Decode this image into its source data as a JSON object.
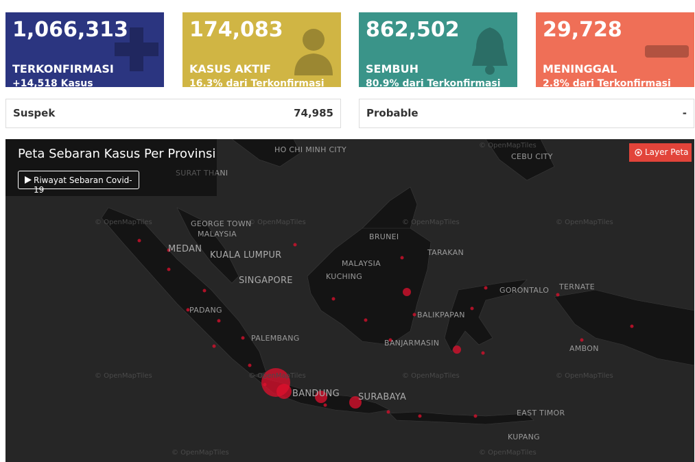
{
  "stats": [
    {
      "value": "1,066,313",
      "label": "TERKONFIRMASI",
      "sub": "+14,518 Kasus"
    },
    {
      "value": "174,083",
      "label": "KASUS AKTIF",
      "sub": "16.3% dari Terkonfirmasi"
    },
    {
      "value": "862,502",
      "label": "SEMBUH",
      "sub": "80.9% dari Terkonfirmasi"
    },
    {
      "value": "29,728",
      "label": "MENINGGAL",
      "sub": "2.8% dari Terkonfirmasi"
    }
  ],
  "extra": [
    {
      "label": "Suspek",
      "value": "74,985"
    },
    {
      "label": "Probable",
      "value": "-"
    }
  ],
  "map": {
    "title": "Peta Sebaran Kasus Per Provinsi",
    "button": "Riwayat Sebaran Covid-19",
    "layer_button": "Layer Peta",
    "attribution": "© OpenMapTiles",
    "labels": [
      "HO CHI MINH CITY",
      "CEBU CITY",
      "SURAT THANI",
      "GEORGE TOWN",
      "MALAYSIA",
      "MEDAN",
      "KUALA LUMPUR",
      "SINGAPORE",
      "BRUNEI",
      "MALAYSIA",
      "TARAKAN",
      "KUCHING",
      "TERNATE",
      "GORONTALO",
      "BALIKPAPAN",
      "PADANG",
      "PALEMBANG",
      "BANJARMASIN",
      "AMBON",
      "BANDUNG",
      "SURABAYA",
      "EAST TIMOR",
      "KUPANG"
    ]
  }
}
